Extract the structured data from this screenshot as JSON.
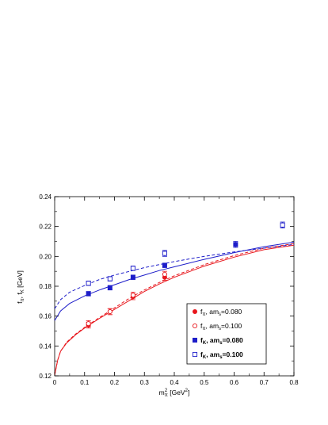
{
  "chart_data": {
    "type": "scatter",
    "xlabel": {
      "base": "m",
      "sub": "π",
      "sup": "2",
      "unit": "[GeV",
      "unit_sup": "2",
      "unit_close": "]"
    },
    "ylabel": {
      "a": "f",
      "a_sub": "π",
      "sep": ", f",
      "b_sub": "K",
      "unit": " [GeV]"
    },
    "xlim": [
      0,
      0.8
    ],
    "ylim": [
      0.12,
      0.24
    ],
    "xticks": [
      "0",
      "0.1",
      "0.2",
      "0.3",
      "0.4",
      "0.5",
      "0.6",
      "0.7",
      "0.8"
    ],
    "yticks": [
      "0.12",
      "0.14",
      "0.16",
      "0.18",
      "0.20",
      "0.22",
      "0.24"
    ],
    "grid": false,
    "legend_position": "lower-right",
    "series": [
      {
        "label_base": "f",
        "label_sub": "π",
        "label_mid": ", am",
        "label_sub2": "s",
        "label_val": "=0.080",
        "marker": "filled-circle",
        "color": "#e8161c",
        "bold": false,
        "points": [
          [
            0.113,
            0.154,
            0.002
          ],
          [
            0.185,
            0.163,
            0.002
          ],
          [
            0.262,
            0.173,
            0.002
          ],
          [
            0.368,
            0.186,
            0.002
          ]
        ]
      },
      {
        "label_base": "f",
        "label_sub": "π",
        "label_mid": ", am",
        "label_sub2": "s",
        "label_val": "=0.100",
        "marker": "open-circle",
        "color": "#e8161c",
        "bold": false,
        "points": [
          [
            0.113,
            0.155,
            0.002
          ],
          [
            0.185,
            0.163,
            0.002
          ],
          [
            0.262,
            0.174,
            0.002
          ],
          [
            0.368,
            0.188,
            0.002
          ]
        ]
      },
      {
        "label_base": "f",
        "label_sub": "K",
        "label_mid": ", am",
        "label_sub2": "s",
        "label_val": "=0.080",
        "marker": "filled-square",
        "color": "#1d1dc9",
        "bold": true,
        "points": [
          [
            0.113,
            0.175,
            0.0015
          ],
          [
            0.185,
            0.179,
            0.0015
          ],
          [
            0.262,
            0.186,
            0.0015
          ],
          [
            0.368,
            0.194,
            0.0015
          ],
          [
            0.605,
            0.208,
            0.002
          ]
        ]
      },
      {
        "label_base": "f",
        "label_sub": "K",
        "label_mid": ", am",
        "label_sub2": "s",
        "label_val": "=0.100",
        "marker": "open-square",
        "color": "#1d1dc9",
        "bold": true,
        "points": [
          [
            0.113,
            0.182,
            0.0015
          ],
          [
            0.185,
            0.185,
            0.0015
          ],
          [
            0.262,
            0.192,
            0.0015
          ],
          [
            0.368,
            0.202,
            0.002
          ],
          [
            0.762,
            0.221,
            0.002
          ]
        ]
      }
    ],
    "fit_curves": [
      {
        "color": "#e8161c",
        "dash": false,
        "points": [
          [
            0.0,
            0.1205
          ],
          [
            0.01,
            0.1305
          ],
          [
            0.02,
            0.1365
          ],
          [
            0.04,
            0.142
          ],
          [
            0.07,
            0.1475
          ],
          [
            0.1,
            0.152
          ],
          [
            0.15,
            0.1585
          ],
          [
            0.2,
            0.1645
          ],
          [
            0.25,
            0.1705
          ],
          [
            0.3,
            0.1765
          ],
          [
            0.35,
            0.1815
          ],
          [
            0.4,
            0.186
          ],
          [
            0.5,
            0.1935
          ],
          [
            0.6,
            0.1995
          ],
          [
            0.7,
            0.2045
          ],
          [
            0.8,
            0.2075
          ]
        ]
      },
      {
        "color": "#e8161c",
        "dash": true,
        "points": [
          [
            0.0,
            0.1205
          ],
          [
            0.01,
            0.1305
          ],
          [
            0.02,
            0.1365
          ],
          [
            0.04,
            0.1425
          ],
          [
            0.07,
            0.148
          ],
          [
            0.1,
            0.1525
          ],
          [
            0.15,
            0.159
          ],
          [
            0.2,
            0.1655
          ],
          [
            0.25,
            0.172
          ],
          [
            0.3,
            0.1775
          ],
          [
            0.35,
            0.1825
          ],
          [
            0.4,
            0.187
          ],
          [
            0.5,
            0.1945
          ],
          [
            0.6,
            0.2005
          ],
          [
            0.7,
            0.2055
          ],
          [
            0.8,
            0.2085
          ]
        ]
      },
      {
        "color": "#1d1dc9",
        "dash": false,
        "points": [
          [
            0.0,
            0.157
          ],
          [
            0.02,
            0.1635
          ],
          [
            0.05,
            0.1685
          ],
          [
            0.1,
            0.1735
          ],
          [
            0.15,
            0.1775
          ],
          [
            0.2,
            0.181
          ],
          [
            0.25,
            0.1845
          ],
          [
            0.3,
            0.1875
          ],
          [
            0.35,
            0.1905
          ],
          [
            0.4,
            0.193
          ],
          [
            0.5,
            0.198
          ],
          [
            0.6,
            0.2025
          ],
          [
            0.7,
            0.2065
          ],
          [
            0.8,
            0.2095
          ]
        ]
      },
      {
        "color": "#1d1dc9",
        "dash": true,
        "points": [
          [
            0.0,
            0.165
          ],
          [
            0.02,
            0.171
          ],
          [
            0.05,
            0.176
          ],
          [
            0.1,
            0.1805
          ],
          [
            0.15,
            0.1845
          ],
          [
            0.2,
            0.1875
          ],
          [
            0.25,
            0.19
          ],
          [
            0.3,
            0.1925
          ],
          [
            0.35,
            0.1945
          ],
          [
            0.4,
            0.1965
          ],
          [
            0.5,
            0.2
          ],
          [
            0.6,
            0.203
          ],
          [
            0.7,
            0.2055
          ],
          [
            0.8,
            0.208
          ]
        ]
      }
    ]
  }
}
